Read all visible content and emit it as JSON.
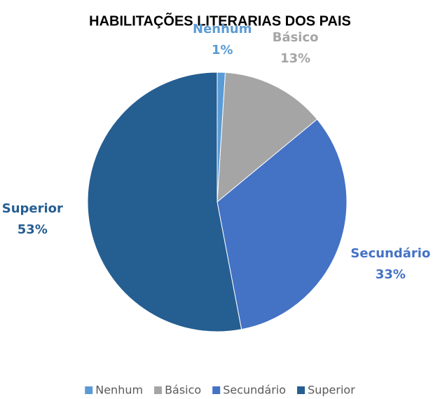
{
  "chart_data": {
    "type": "pie",
    "title": "HABILITAÇÕES LITERARIAS DOS PAIS",
    "categories": [
      "Nenhum",
      "Básico",
      "Secundário",
      "Superior"
    ],
    "values": [
      1,
      13,
      33,
      53
    ],
    "value_labels": [
      "1%",
      "13%",
      "33%",
      "53%"
    ],
    "colors": [
      "#5b9bd5",
      "#a5a5a5",
      "#4472c4",
      "#255e91"
    ],
    "legend": "bottom"
  }
}
